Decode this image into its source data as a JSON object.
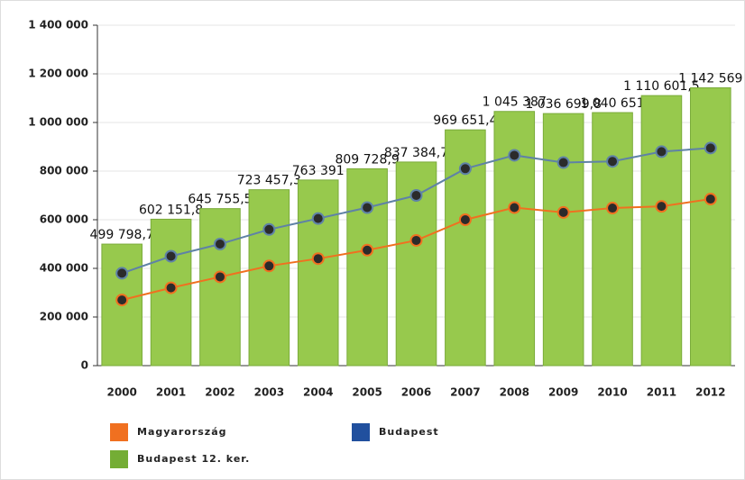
{
  "chart_data": {
    "type": "bar",
    "categories": [
      "2000",
      "2001",
      "2002",
      "2003",
      "2004",
      "2005",
      "2006",
      "2007",
      "2008",
      "2009",
      "2010",
      "2011",
      "2012"
    ],
    "series": [
      {
        "name": "Magyarország",
        "type": "line",
        "color": "#f07020",
        "values": [
          270000,
          320000,
          365000,
          410000,
          440000,
          475000,
          515000,
          600000,
          650000,
          630000,
          648000,
          655000,
          685000
        ]
      },
      {
        "name": "Budapest",
        "type": "line",
        "color": "#5f82a6",
        "legend_color": "#21509e",
        "values": [
          380000,
          450000,
          500000,
          560000,
          605000,
          650000,
          700000,
          810000,
          865000,
          835000,
          840000,
          880000,
          895000
        ]
      },
      {
        "name": "Budapest 12. ker.",
        "type": "bar",
        "color": "#97c94d",
        "legend_color": "#74ad35",
        "values": [
          499798.7,
          602151.8,
          645755.5,
          723457.3,
          763391,
          809728.9,
          837384.7,
          969651.4,
          1045387,
          1036699.8,
          1040651,
          1110601.5,
          1142569
        ],
        "value_labels": [
          "499 798,7",
          "602 151,8",
          "645 755,5",
          "723 457,3",
          "763 391",
          "809 728,9",
          "837 384,7",
          "969 651,4",
          "1 045 387",
          "1 036 699,8",
          "1 040 651",
          "1 110 601,5",
          "1 142 569"
        ]
      }
    ],
    "ylim": [
      0,
      1400000
    ],
    "yticks": [
      0,
      {
        "value": 200000,
        "label": "200 000"
      },
      {
        "value": 400000,
        "label": "400 000"
      },
      {
        "value": 600000,
        "label": "600 000"
      },
      {
        "value": 800000,
        "label": "800 000"
      },
      {
        "value": 1000000,
        "label": "1 000 000"
      },
      {
        "value": 1200000,
        "label": "1 200 000"
      },
      {
        "value": 1400000,
        "label": "1 400 000"
      }
    ],
    "grid": true
  }
}
